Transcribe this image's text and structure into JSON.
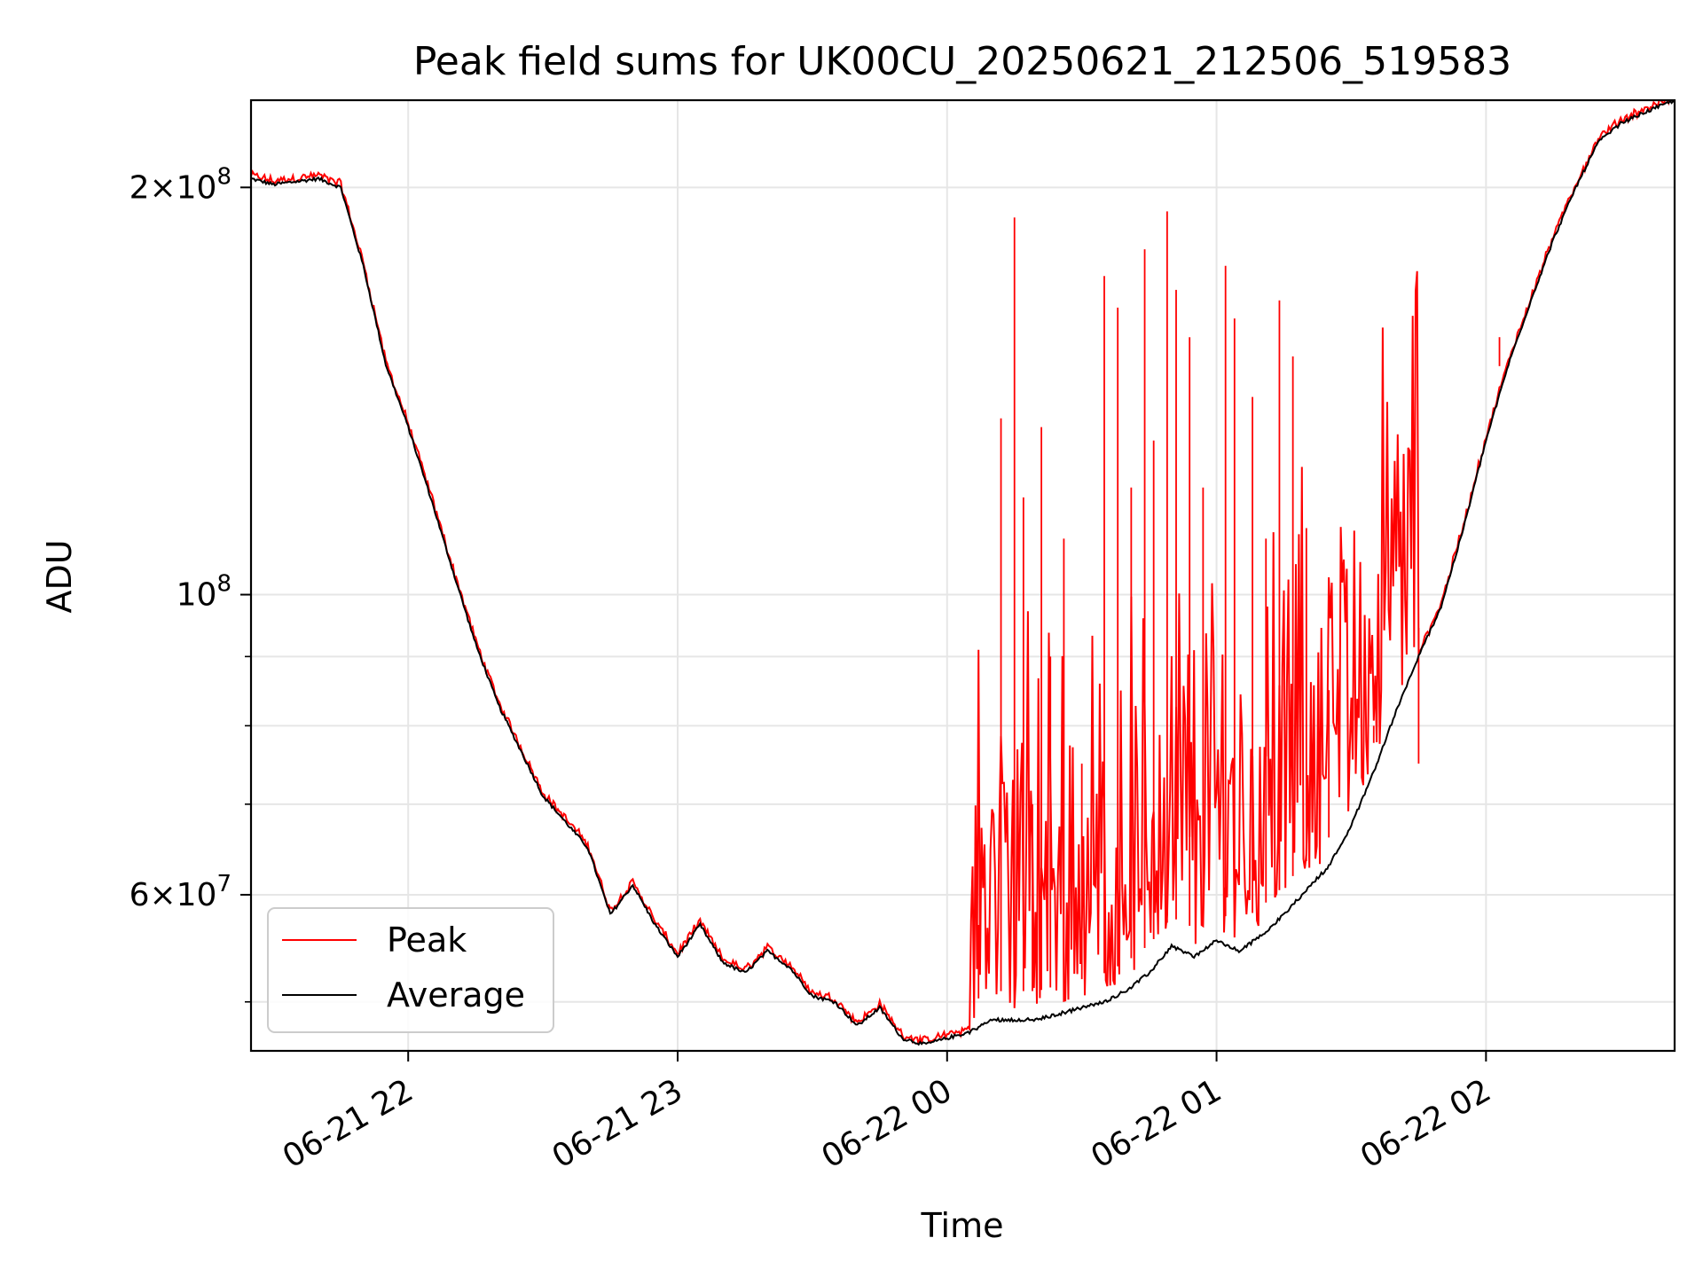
{
  "chart_data": {
    "type": "line",
    "title": "Peak field sums for UK00CU_20250621_212506_519583",
    "xlabel": "Time",
    "ylabel": "ADU",
    "yscale": "log",
    "grid": true,
    "legend_position": "lower-left",
    "xlim": [
      "2025-06-21 21:25",
      "2025-06-22 02:42"
    ],
    "ylim": [
      46000000,
      232000000
    ],
    "x_ticks": [
      {
        "t": "2025-06-21 22:00",
        "label": "06-21 22"
      },
      {
        "t": "2025-06-21 23:00",
        "label": "06-21 23"
      },
      {
        "t": "2025-06-22 00:00",
        "label": "06-22 00"
      },
      {
        "t": "2025-06-22 01:00",
        "label": "06-22 01"
      },
      {
        "t": "2025-06-22 02:00",
        "label": "06-22 02"
      }
    ],
    "y_major_ticks": [
      {
        "v": 100000000,
        "base": "10",
        "exp": "8",
        "mant": ""
      },
      {
        "v": 200000000,
        "base": "10",
        "exp": "8",
        "mant": "2×"
      },
      {
        "v": 60000000,
        "base": "10",
        "exp": "7",
        "mant": "6×"
      }
    ],
    "y_minor_ticks": [
      50000000,
      70000000,
      80000000,
      90000000
    ],
    "series": [
      {
        "name": "Average",
        "color": "#000000",
        "x": [
          "2025-06-21 21:25",
          "2025-06-21 21:30",
          "2025-06-21 21:35",
          "2025-06-21 21:40",
          "2025-06-21 21:45",
          "2025-06-21 21:50",
          "2025-06-21 21:55",
          "2025-06-21 22:00",
          "2025-06-21 22:05",
          "2025-06-21 22:10",
          "2025-06-21 22:15",
          "2025-06-21 22:20",
          "2025-06-21 22:30",
          "2025-06-21 22:40",
          "2025-06-21 22:45",
          "2025-06-21 22:50",
          "2025-06-21 22:55",
          "2025-06-21 23:00",
          "2025-06-21 23:05",
          "2025-06-21 23:10",
          "2025-06-21 23:15",
          "2025-06-21 23:20",
          "2025-06-21 23:25",
          "2025-06-21 23:30",
          "2025-06-21 23:35",
          "2025-06-21 23:40",
          "2025-06-21 23:45",
          "2025-06-21 23:50",
          "2025-06-21 23:55",
          "2025-06-22 00:00",
          "2025-06-22 00:05",
          "2025-06-22 00:10",
          "2025-06-22 00:15",
          "2025-06-22 00:20",
          "2025-06-22 00:25",
          "2025-06-22 00:30",
          "2025-06-22 00:35",
          "2025-06-22 00:40",
          "2025-06-22 00:45",
          "2025-06-22 00:50",
          "2025-06-22 00:55",
          "2025-06-22 01:00",
          "2025-06-22 01:05",
          "2025-06-22 01:10",
          "2025-06-22 01:15",
          "2025-06-22 01:20",
          "2025-06-22 01:25",
          "2025-06-22 01:30",
          "2025-06-22 01:35",
          "2025-06-22 01:40",
          "2025-06-22 01:45",
          "2025-06-22 01:50",
          "2025-06-22 01:55",
          "2025-06-22 02:00",
          "2025-06-22 02:05",
          "2025-06-22 02:10",
          "2025-06-22 02:15",
          "2025-06-22 02:20",
          "2025-06-22 02:25",
          "2025-06-22 02:30",
          "2025-06-22 02:35",
          "2025-06-22 02:42"
        ],
        "values": [
          203000000,
          201000000,
          202000000,
          203000000,
          200000000,
          175000000,
          148000000,
          133000000,
          118000000,
          104000000,
          92000000,
          83000000,
          71000000,
          65000000,
          58000000,
          61000000,
          57000000,
          54000000,
          57000000,
          53500000,
          52500000,
          54500000,
          53000000,
          50500000,
          50000000,
          48000000,
          49500000,
          47000000,
          46500000,
          47000000,
          47500000,
          48500000,
          48500000,
          48500000,
          49000000,
          49500000,
          50000000,
          51000000,
          52500000,
          55000000,
          54000000,
          55500000,
          54500000,
          56000000,
          58000000,
          60500000,
          63000000,
          67500000,
          74000000,
          82000000,
          90000000,
          98000000,
          112000000,
          130000000,
          148000000,
          165000000,
          183000000,
          200000000,
          216000000,
          223000000,
          227000000,
          232000000
        ]
      },
      {
        "name": "Peak",
        "color": "#ff0000",
        "x": [
          "2025-06-22 00:07",
          "2025-06-22 00:12",
          "2025-06-22 00:15",
          "2025-06-22 00:17",
          "2025-06-22 00:19",
          "2025-06-22 00:21",
          "2025-06-22 00:23",
          "2025-06-22 00:26",
          "2025-06-22 00:30",
          "2025-06-22 00:35",
          "2025-06-22 00:38",
          "2025-06-22 00:41",
          "2025-06-22 00:44",
          "2025-06-22 00:46",
          "2025-06-22 00:49",
          "2025-06-22 00:51",
          "2025-06-22 00:54",
          "2025-06-22 00:57",
          "2025-06-22 01:02",
          "2025-06-22 01:04",
          "2025-06-22 01:08",
          "2025-06-22 01:11",
          "2025-06-22 01:14",
          "2025-06-22 01:17",
          "2025-06-22 01:20",
          "2025-06-22 01:25",
          "2025-06-22 01:35",
          "2025-06-22 01:45",
          "2025-06-22 02:03"
        ],
        "values": [
          57000000,
          135000000,
          190000000,
          118000000,
          70000000,
          133000000,
          90000000,
          110000000,
          75000000,
          172000000,
          163000000,
          120000000,
          180000000,
          130000000,
          192000000,
          168000000,
          155000000,
          120000000,
          175000000,
          160000000,
          140000000,
          110000000,
          165000000,
          150000000,
          112000000,
          85000000,
          80000000,
          75000000,
          155000000
        ]
      }
    ]
  }
}
